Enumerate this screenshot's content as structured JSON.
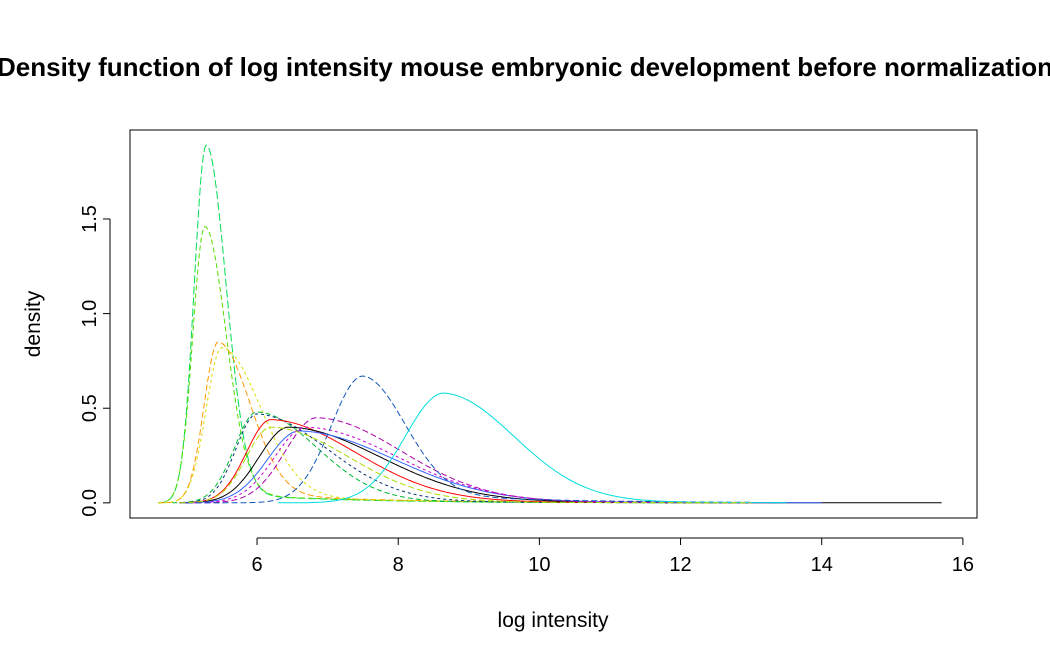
{
  "chart_data": {
    "type": "line",
    "title": "Density function of log intensity mouse embryonic development before normalization",
    "xlabel": "log intensity",
    "ylabel": "density",
    "xlim": [
      4.2,
      16.2
    ],
    "ylim": [
      -0.08,
      1.97
    ],
    "xticks": [
      6,
      8,
      10,
      12,
      14,
      16
    ],
    "yticks": [
      0.0,
      0.5,
      1.0,
      1.5
    ],
    "xtick_labels": [
      "6",
      "8",
      "10",
      "12",
      "14",
      "16"
    ],
    "ytick_labels": [
      "0.0",
      "0.5",
      "1.0",
      "1.5"
    ],
    "grid": false,
    "legend": "none",
    "series": [
      {
        "color": "#00dd55",
        "dash": "8,3",
        "mode": 5.28,
        "peak": 1.89,
        "sl": 0.17,
        "sr": 0.28,
        "tail": 0.03,
        "tailScale": 1.6,
        "xmin": 4.6,
        "xmax": 12.5
      },
      {
        "color": "#55dd00",
        "dash": "5,3",
        "mode": 5.26,
        "peak": 1.46,
        "sl": 0.17,
        "sr": 0.3,
        "tail": 0.04,
        "tailScale": 1.7,
        "xmin": 4.6,
        "xmax": 12.5
      },
      {
        "color": "#ff9900",
        "dash": "6,3",
        "mode": 5.45,
        "peak": 0.85,
        "sl": 0.2,
        "sr": 0.45,
        "tail": 0.07,
        "tailScale": 1.8,
        "xmin": 4.6,
        "xmax": 12.8
      },
      {
        "color": "#dddd00",
        "dash": "3,3",
        "mode": 5.5,
        "peak": 0.82,
        "sl": 0.22,
        "sr": 0.55,
        "tail": 0.06,
        "tailScale": 1.9,
        "xmin": 4.6,
        "xmax": 12.8
      },
      {
        "color": "#00bb33",
        "dash": "5,3",
        "mode": 6.0,
        "peak": 0.48,
        "sl": 0.32,
        "sr": 0.85,
        "tail": 0.05,
        "tailScale": 1.8,
        "xmin": 4.8,
        "xmax": 13.0
      },
      {
        "color": "#003377",
        "dash": "3,3",
        "mode": 6.0,
        "peak": 0.47,
        "sl": 0.3,
        "sr": 1.0,
        "tail": 0.07,
        "tailScale": 1.7,
        "xmin": 4.9,
        "xmax": 13.0
      },
      {
        "color": "#ff0000",
        "dash": "",
        "mode": 6.2,
        "peak": 0.44,
        "sl": 0.35,
        "sr": 1.2,
        "tail": 0.06,
        "tailScale": 2.0,
        "xmin": 4.9,
        "xmax": 13.5
      },
      {
        "color": "#000000",
        "dash": "",
        "mode": 6.45,
        "peak": 0.4,
        "sl": 0.42,
        "sr": 1.3,
        "tail": 0.06,
        "tailScale": 2.2,
        "xmin": 4.9,
        "xmax": 15.7
      },
      {
        "color": "#3366ff",
        "dash": "",
        "mode": 6.6,
        "peak": 0.38,
        "sl": 0.45,
        "sr": 1.35,
        "tail": 0.06,
        "tailScale": 2.2,
        "xmin": 4.9,
        "xmax": 14.0
      },
      {
        "color": "#aa00aa",
        "dash": "6,3",
        "mode": 6.85,
        "peak": 0.45,
        "sl": 0.45,
        "sr": 1.2,
        "tail": 0.06,
        "tailScale": 2.1,
        "xmin": 5.0,
        "xmax": 13.3
      },
      {
        "color": "#cc00cc",
        "dash": "3,3",
        "mode": 6.7,
        "peak": 0.4,
        "sl": 0.45,
        "sr": 1.3,
        "tail": 0.06,
        "tailScale": 2.1,
        "xmin": 5.0,
        "xmax": 13.3
      },
      {
        "color": "#1155bb",
        "dash": "6,3",
        "mode": 7.5,
        "peak": 0.67,
        "sl": 0.45,
        "sr": 0.6,
        "tail": 0.1,
        "tailScale": 1.8,
        "xmin": 5.0,
        "xmax": 13.0
      },
      {
        "color": "#00dddd",
        "dash": "",
        "mode": 8.65,
        "peak": 0.58,
        "sl": 0.55,
        "sr": 1.0,
        "tail": 0.06,
        "tailScale": 1.4,
        "xmin": 6.3,
        "xmax": 13.5
      },
      {
        "color": "#aadd00",
        "dash": "6,3",
        "mode": 6.2,
        "peak": 0.4,
        "sl": 0.35,
        "sr": 1.1,
        "tail": 0.05,
        "tailScale": 2.0,
        "xmin": 4.9,
        "xmax": 13.0
      }
    ]
  }
}
